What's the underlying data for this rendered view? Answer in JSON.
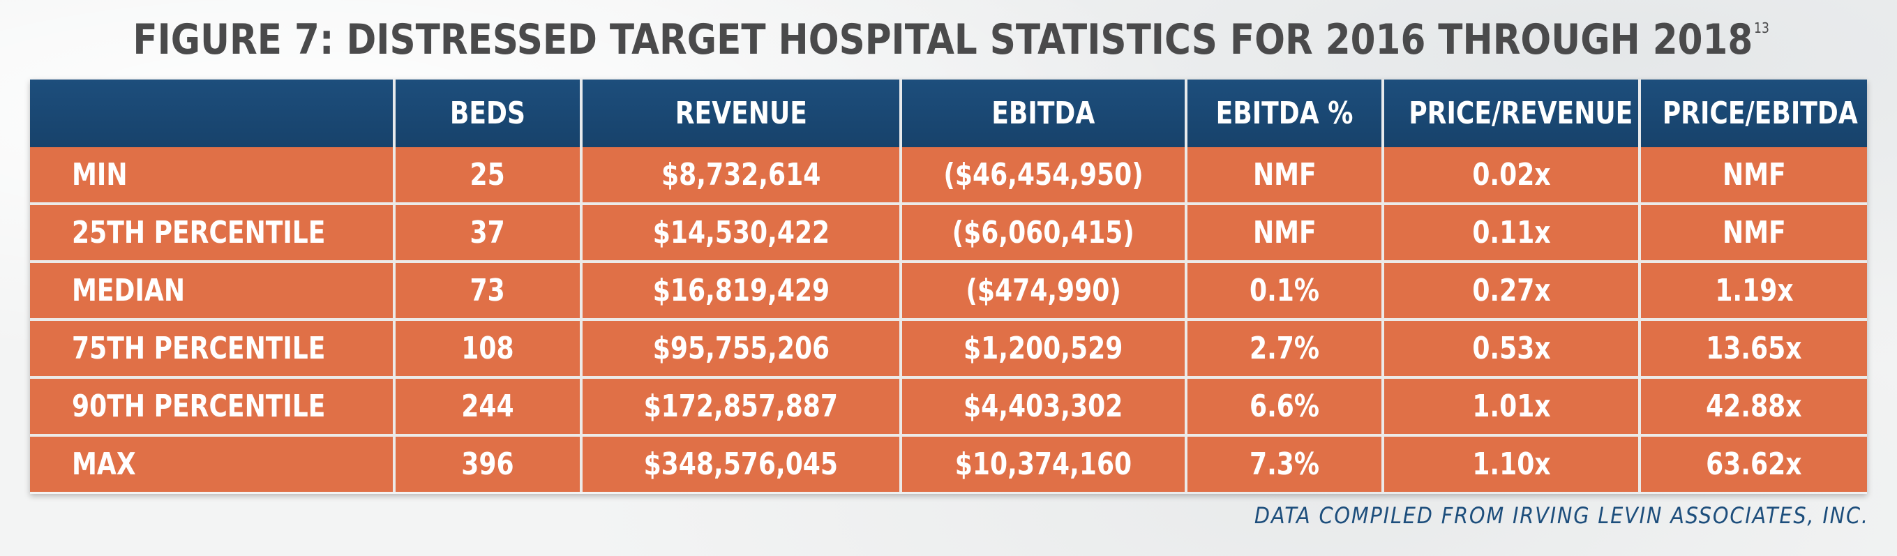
{
  "figure": {
    "title": "FIGURE 7: DISTRESSED TARGET HOSPITAL STATISTICS FOR 2016 THROUGH 2018",
    "footnote_ref": "13",
    "source": "DATA COMPILED FROM IRVING LEVIN ASSOCIATES, INC."
  },
  "table": {
    "headers": [
      "",
      "BEDS",
      "REVENUE",
      "EBITDA",
      "EBITDA %",
      "PRICE/REVENUE",
      "PRICE/EBITDA"
    ],
    "rows": [
      [
        "MIN",
        "25",
        "$8,732,614",
        "($46,454,950)",
        "NMF",
        "0.02x",
        "NMF"
      ],
      [
        "25TH PERCENTILE",
        "37",
        "$14,530,422",
        "($6,060,415)",
        "NMF",
        "0.11x",
        "NMF"
      ],
      [
        "MEDIAN",
        "73",
        "$16,819,429",
        "($474,990)",
        "0.1%",
        "0.27x",
        "1.19x"
      ],
      [
        "75TH PERCENTILE",
        "108",
        "$95,755,206",
        "$1,200,529",
        "2.7%",
        "0.53x",
        "13.65x"
      ],
      [
        "90TH PERCENTILE",
        "244",
        "$172,857,887",
        "$4,403,302",
        "6.6%",
        "1.01x",
        "42.88x"
      ],
      [
        "MAX",
        "396",
        "$348,576,045",
        "$10,374,160",
        "7.3%",
        "1.10x",
        "63.62x"
      ]
    ]
  },
  "colors": {
    "header_blue": "#1d4e7c",
    "row_orange": "#e07047",
    "title_gray": "#4a4a4b"
  }
}
